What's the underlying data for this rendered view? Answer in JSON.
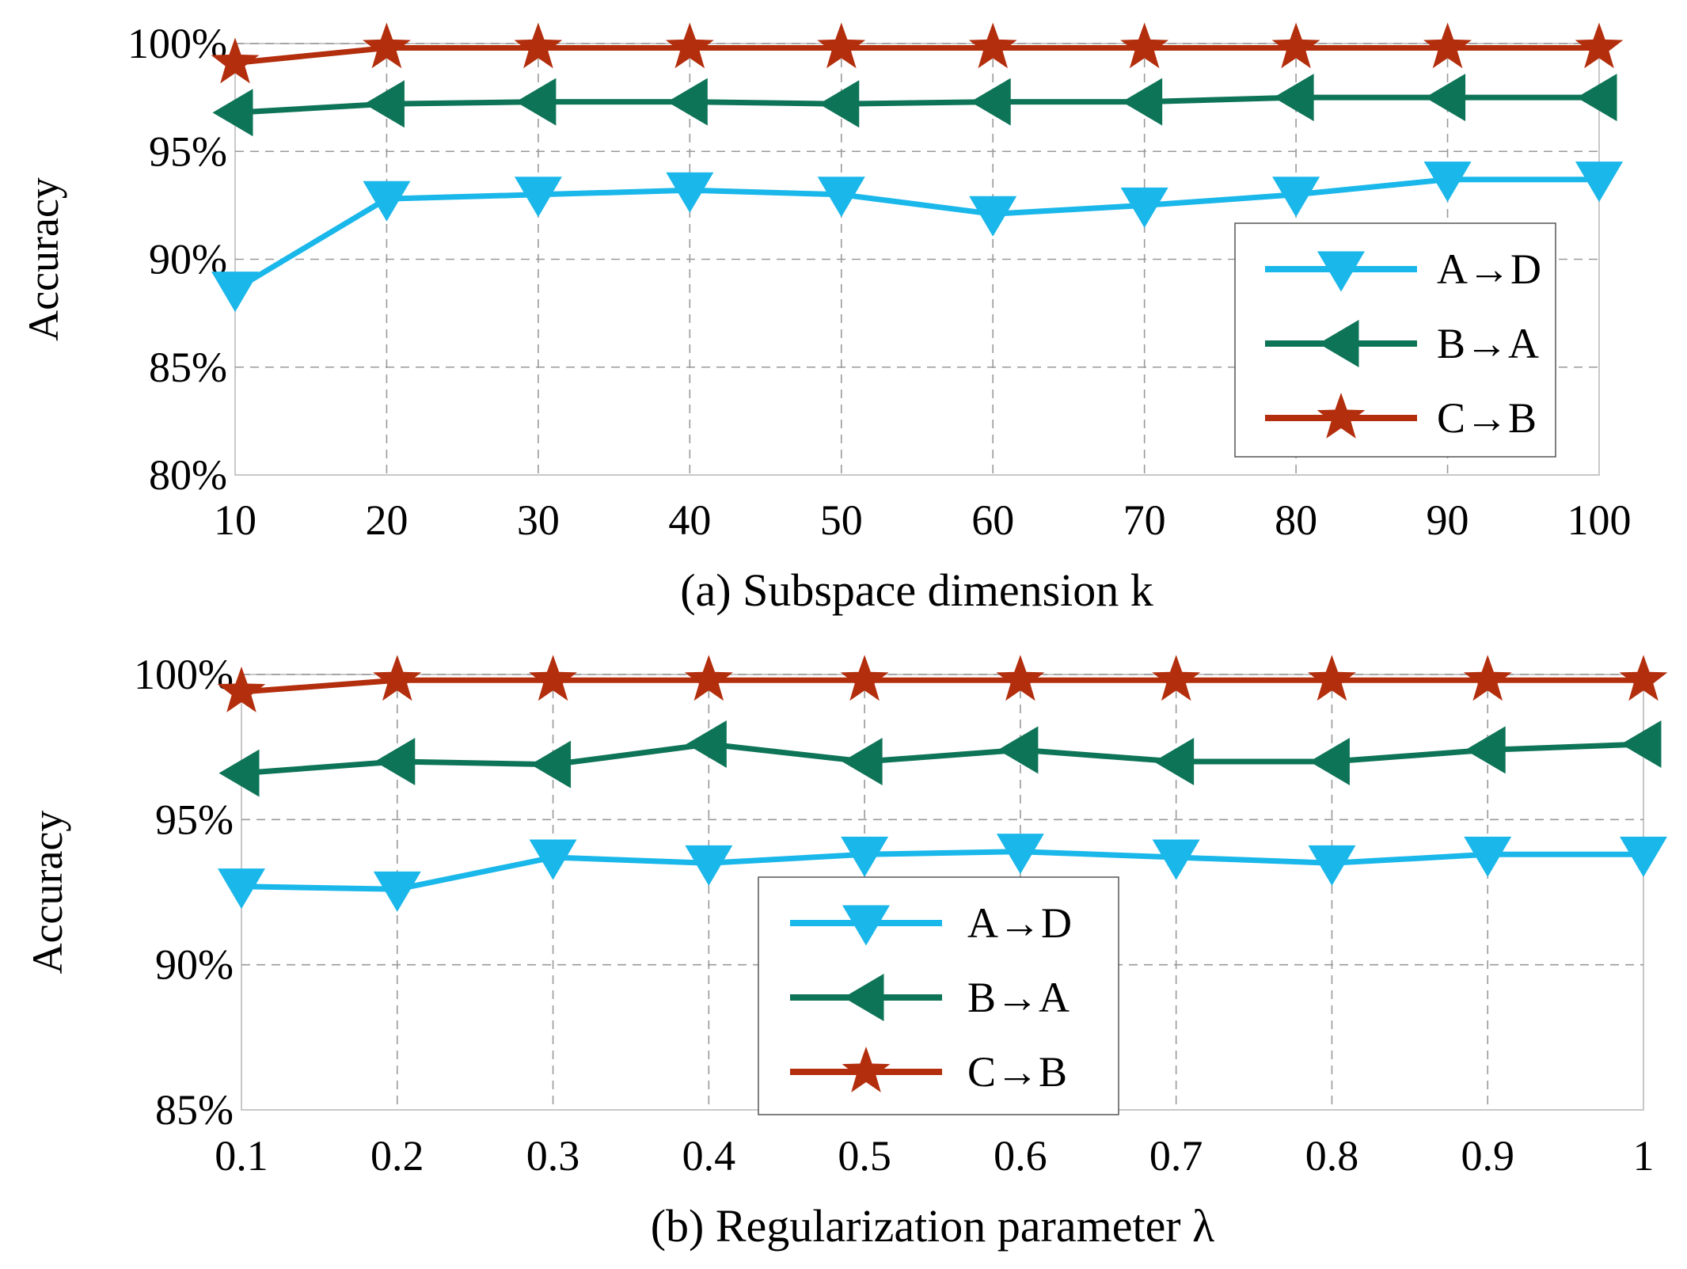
{
  "chart_data": [
    {
      "type": "line",
      "caption": "(a) Subspace dimension k",
      "ylabel": "Accuracy",
      "x": [
        10,
        20,
        30,
        40,
        50,
        60,
        70,
        80,
        90,
        100
      ],
      "xtick_labels": [
        "10",
        "20",
        "30",
        "40",
        "50",
        "60",
        "70",
        "80",
        "90",
        "100"
      ],
      "xlim": [
        10,
        100
      ],
      "ylim": [
        80,
        100
      ],
      "ytick_values": [
        80,
        85,
        90,
        95,
        100
      ],
      "ytick_labels": [
        "80%",
        "85%",
        "90%",
        "95%",
        "100%"
      ],
      "grid": true,
      "legend_position": "right",
      "series": [
        {
          "name": "A→D",
          "color": "#1ab7ea",
          "marker": "triangle-down",
          "values": [
            88.6,
            92.8,
            93.0,
            93.2,
            93.0,
            92.1,
            92.5,
            93.0,
            93.7,
            93.7
          ]
        },
        {
          "name": "B→A",
          "color": "#0e7457",
          "marker": "triangle-left",
          "values": [
            96.8,
            97.2,
            97.3,
            97.3,
            97.2,
            97.3,
            97.3,
            97.5,
            97.5,
            97.5
          ]
        },
        {
          "name": "C→B",
          "color": "#b32e0d",
          "marker": "star",
          "values": [
            99.1,
            99.8,
            99.8,
            99.8,
            99.8,
            99.8,
            99.8,
            99.8,
            99.8,
            99.8
          ]
        }
      ]
    },
    {
      "type": "line",
      "caption": "(b) Regularization parameter λ",
      "ylabel": "Accuracy",
      "x": [
        0.1,
        0.2,
        0.3,
        0.4,
        0.5,
        0.6,
        0.7,
        0.8,
        0.9,
        1.0
      ],
      "xtick_labels": [
        "0.1",
        "0.2",
        "0.3",
        "0.4",
        "0.5",
        "0.6",
        "0.7",
        "0.8",
        "0.9",
        "1"
      ],
      "xlim": [
        0.1,
        1.0
      ],
      "ylim": [
        85,
        100
      ],
      "ytick_values": [
        85,
        90,
        95,
        100
      ],
      "ytick_labels": [
        "85%",
        "90%",
        "95%",
        "100%"
      ],
      "grid": true,
      "legend_position": "bottom-center",
      "series": [
        {
          "name": "A→D",
          "color": "#1ab7ea",
          "marker": "triangle-down",
          "values": [
            92.7,
            92.6,
            93.7,
            93.5,
            93.8,
            93.9,
            93.7,
            93.5,
            93.8,
            93.8
          ]
        },
        {
          "name": "B→A",
          "color": "#0e7457",
          "marker": "triangle-left",
          "values": [
            96.6,
            97.0,
            96.9,
            97.6,
            97.0,
            97.4,
            97.0,
            97.0,
            97.4,
            97.6
          ]
        },
        {
          "name": "C→B",
          "color": "#b32e0d",
          "marker": "star",
          "values": [
            99.4,
            99.8,
            99.8,
            99.8,
            99.8,
            99.8,
            99.8,
            99.8,
            99.8,
            99.8
          ]
        }
      ]
    }
  ]
}
